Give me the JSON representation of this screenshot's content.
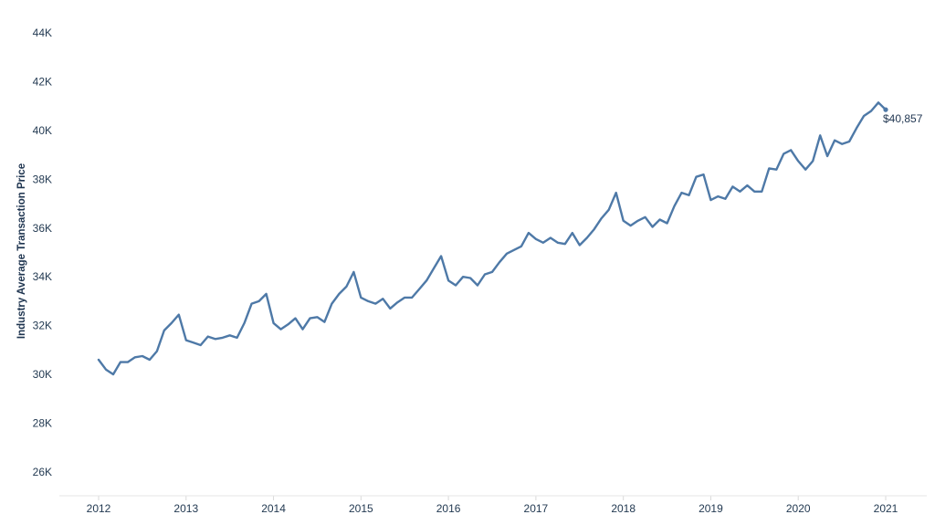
{
  "chart_data": {
    "type": "line",
    "title": "",
    "xlabel": "",
    "ylabel": "Industry Average Transaction Price",
    "x_tick_labels": [
      "2012",
      "2013",
      "2014",
      "2015",
      "2016",
      "2017",
      "2018",
      "2019",
      "2020",
      "2021"
    ],
    "y_tick_labels": [
      "26K",
      "28K",
      "30K",
      "32K",
      "34K",
      "36K",
      "38K",
      "40K",
      "42K",
      "44K"
    ],
    "y_ticks": [
      26000,
      28000,
      30000,
      32000,
      34000,
      36000,
      38000,
      40000,
      42000,
      44000
    ],
    "xlim": [
      "2011-10",
      "2021-05"
    ],
    "ylim": [
      25000,
      45000
    ],
    "grid": false,
    "legend": "none",
    "line_color": "#4e79a7",
    "end_label": "$40,857",
    "series": [
      {
        "x": [
          "2012-01",
          "2012-02",
          "2012-03",
          "2012-04",
          "2012-05",
          "2012-06",
          "2012-07",
          "2012-08",
          "2012-09",
          "2012-10",
          "2012-11",
          "2012-12",
          "2013-01",
          "2013-02",
          "2013-03",
          "2013-04",
          "2013-05",
          "2013-06",
          "2013-07",
          "2013-08",
          "2013-09",
          "2013-10",
          "2013-11",
          "2013-12",
          "2014-01",
          "2014-02",
          "2014-03",
          "2014-04",
          "2014-05",
          "2014-06",
          "2014-07",
          "2014-08",
          "2014-09",
          "2014-10",
          "2014-11",
          "2014-12",
          "2015-01",
          "2015-02",
          "2015-03",
          "2015-04",
          "2015-05",
          "2015-06",
          "2015-07",
          "2015-08",
          "2015-09",
          "2015-10",
          "2015-11",
          "2015-12",
          "2016-01",
          "2016-02",
          "2016-03",
          "2016-04",
          "2016-05",
          "2016-06",
          "2016-07",
          "2016-08",
          "2016-09",
          "2016-10",
          "2016-11",
          "2016-12",
          "2017-01",
          "2017-02",
          "2017-03",
          "2017-04",
          "2017-05",
          "2017-06",
          "2017-07",
          "2017-08",
          "2017-09",
          "2017-10",
          "2017-11",
          "2017-12",
          "2018-01",
          "2018-02",
          "2018-03",
          "2018-04",
          "2018-05",
          "2018-06",
          "2018-07",
          "2018-08",
          "2018-09",
          "2018-10",
          "2018-11",
          "2018-12",
          "2019-01",
          "2019-02",
          "2019-03",
          "2019-04",
          "2019-05",
          "2019-06",
          "2019-07",
          "2019-08",
          "2019-09",
          "2019-10",
          "2019-11",
          "2019-12",
          "2020-01",
          "2020-02",
          "2020-03",
          "2020-04",
          "2020-05",
          "2020-06",
          "2020-07",
          "2020-08",
          "2020-09",
          "2020-10",
          "2020-11",
          "2020-12",
          "2021-01"
        ],
        "values": [
          30600,
          30200,
          30000,
          30500,
          30500,
          30700,
          30750,
          30600,
          30950,
          31800,
          32100,
          32450,
          31400,
          31300,
          31200,
          31550,
          31450,
          31500,
          31600,
          31500,
          32100,
          32900,
          33000,
          33300,
          32100,
          31850,
          32050,
          32300,
          31850,
          32300,
          32350,
          32150,
          32900,
          33300,
          33600,
          34200,
          33150,
          33000,
          32900,
          33100,
          32700,
          32950,
          33150,
          33150,
          33500,
          33850,
          34350,
          34850,
          33850,
          33650,
          34000,
          33950,
          33650,
          34100,
          34200,
          34600,
          34950,
          35100,
          35250,
          35800,
          35550,
          35400,
          35600,
          35400,
          35350,
          35800,
          35300,
          35600,
          35950,
          36400,
          36750,
          37450,
          36300,
          36100,
          36300,
          36450,
          36050,
          36350,
          36200,
          36900,
          37450,
          37350,
          38100,
          38200,
          37150,
          37300,
          37200,
          37700,
          37500,
          37750,
          37500,
          37500,
          38450,
          38400,
          39050,
          39200,
          38750,
          38400,
          38750,
          39800,
          38950,
          39600,
          39450,
          39550,
          40100,
          40600,
          40800,
          41150,
          40857
        ]
      }
    ]
  }
}
